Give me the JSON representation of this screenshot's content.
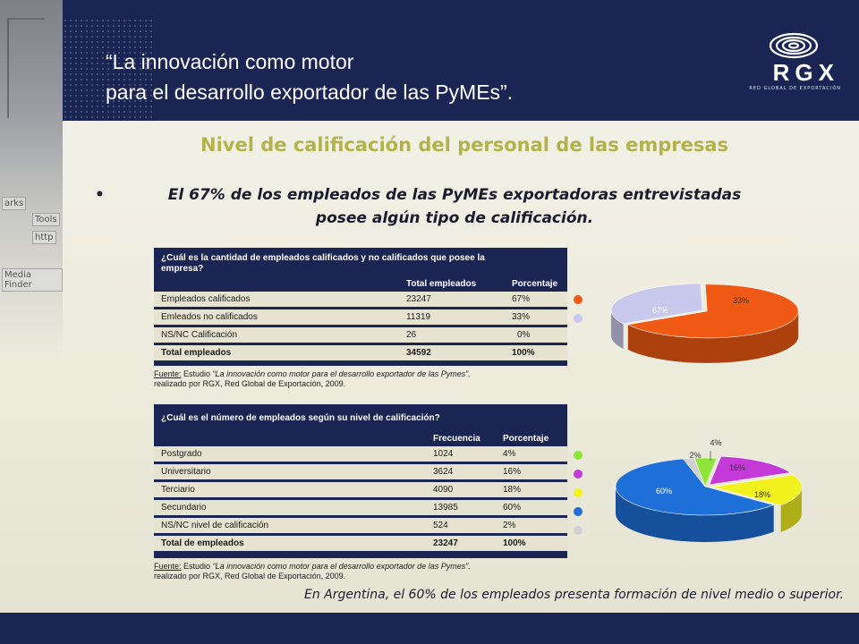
{
  "slide": {
    "title": "“La innovación como motor\npara el desarrollo exportador de las PyMEs”.",
    "logo_text": "RGX",
    "logo_sub": "RED GLOBAL DE EXPORTACIÓN",
    "photo_labels": [
      "arks",
      "Tools",
      "http",
      "Media Finder"
    ]
  },
  "section_title": "Nivel de calificación del personal de las empresas",
  "bullet": {
    "line1": "El 67% de los empleados de las PyMEs exportadoras entrevistadas",
    "line2": "posee algún tipo de calificación."
  },
  "table1": {
    "question_1": "¿Cuál es la cantidad de empleados calificados y no calificados que posee la",
    "question_2": "empresa?",
    "col1": "Total empleados",
    "col2": "Porcentaje",
    "rows": [
      {
        "label": "Empleados calificados",
        "value": "23247",
        "pct": "67%"
      },
      {
        "label": "Emleados no calificados",
        "value": "11319",
        "pct": "33%"
      },
      {
        "label": "NS/NC Calificación",
        "value": "26",
        "pct": "0%"
      }
    ],
    "total": {
      "label": "Total empleados",
      "value": "34592",
      "pct": "100%"
    }
  },
  "source1": {
    "label": "Fuente:",
    "text1": " Estudio ",
    "title": "“La innovación como motor para el desarrollo exportador de las Pymes”.",
    "line2": "realizado por RGX, Red Global de Exportación, 2009."
  },
  "table2": {
    "question": "¿Cuál es el número de empleados según su nivel de calificación?",
    "col1": "Frecuencia",
    "col2": "Porcentaje",
    "rows": [
      {
        "label": "Postgrado",
        "value": "1024",
        "pct": "4%"
      },
      {
        "label": "Universitario",
        "value": "3624",
        "pct": "16%"
      },
      {
        "label": "Terciario",
        "value": "4090",
        "pct": "18%"
      },
      {
        "label": "Secundario",
        "value": "13985",
        "pct": "60%"
      },
      {
        "label": "NS/NC nivel de calificación",
        "value": "524",
        "pct": "2%"
      }
    ],
    "total": {
      "label": "Total de empleados",
      "value": "23247",
      "pct": "100%"
    }
  },
  "source2": {
    "label": "Fuente:",
    "text1": " Estudio ",
    "title": "“La innovación como motor para el desarrollo exportador de las Pymes”.",
    "line2": "realizado por RGX, Red Global de Exportación, 2009."
  },
  "chart_data": [
    {
      "type": "pie",
      "slices": [
        {
          "label": "67%",
          "value": 67,
          "color": "#f05a14"
        },
        {
          "label": "33%",
          "value": 33,
          "color": "#c9c9ee"
        }
      ],
      "legend_colors": [
        "#f05a14",
        "#c9c9ee"
      ]
    },
    {
      "type": "pie",
      "slices": [
        {
          "label": "4%",
          "value": 4,
          "color": "#8ee63a"
        },
        {
          "label": "16%",
          "value": 16,
          "color": "#c33ad8"
        },
        {
          "label": "18%",
          "value": 18,
          "color": "#f2f21e"
        },
        {
          "label": "60%",
          "value": 60,
          "color": "#1e6fd8"
        },
        {
          "label": "2%",
          "value": 2,
          "color": "#d0d0d0"
        }
      ],
      "legend_colors": [
        "#8ee63a",
        "#c33ad8",
        "#f2f21e",
        "#1e6fd8",
        "#d0d0d0"
      ]
    }
  ],
  "conclusion": "En Argentina, el 60% de los empleados presenta formación de nivel medio o superior."
}
